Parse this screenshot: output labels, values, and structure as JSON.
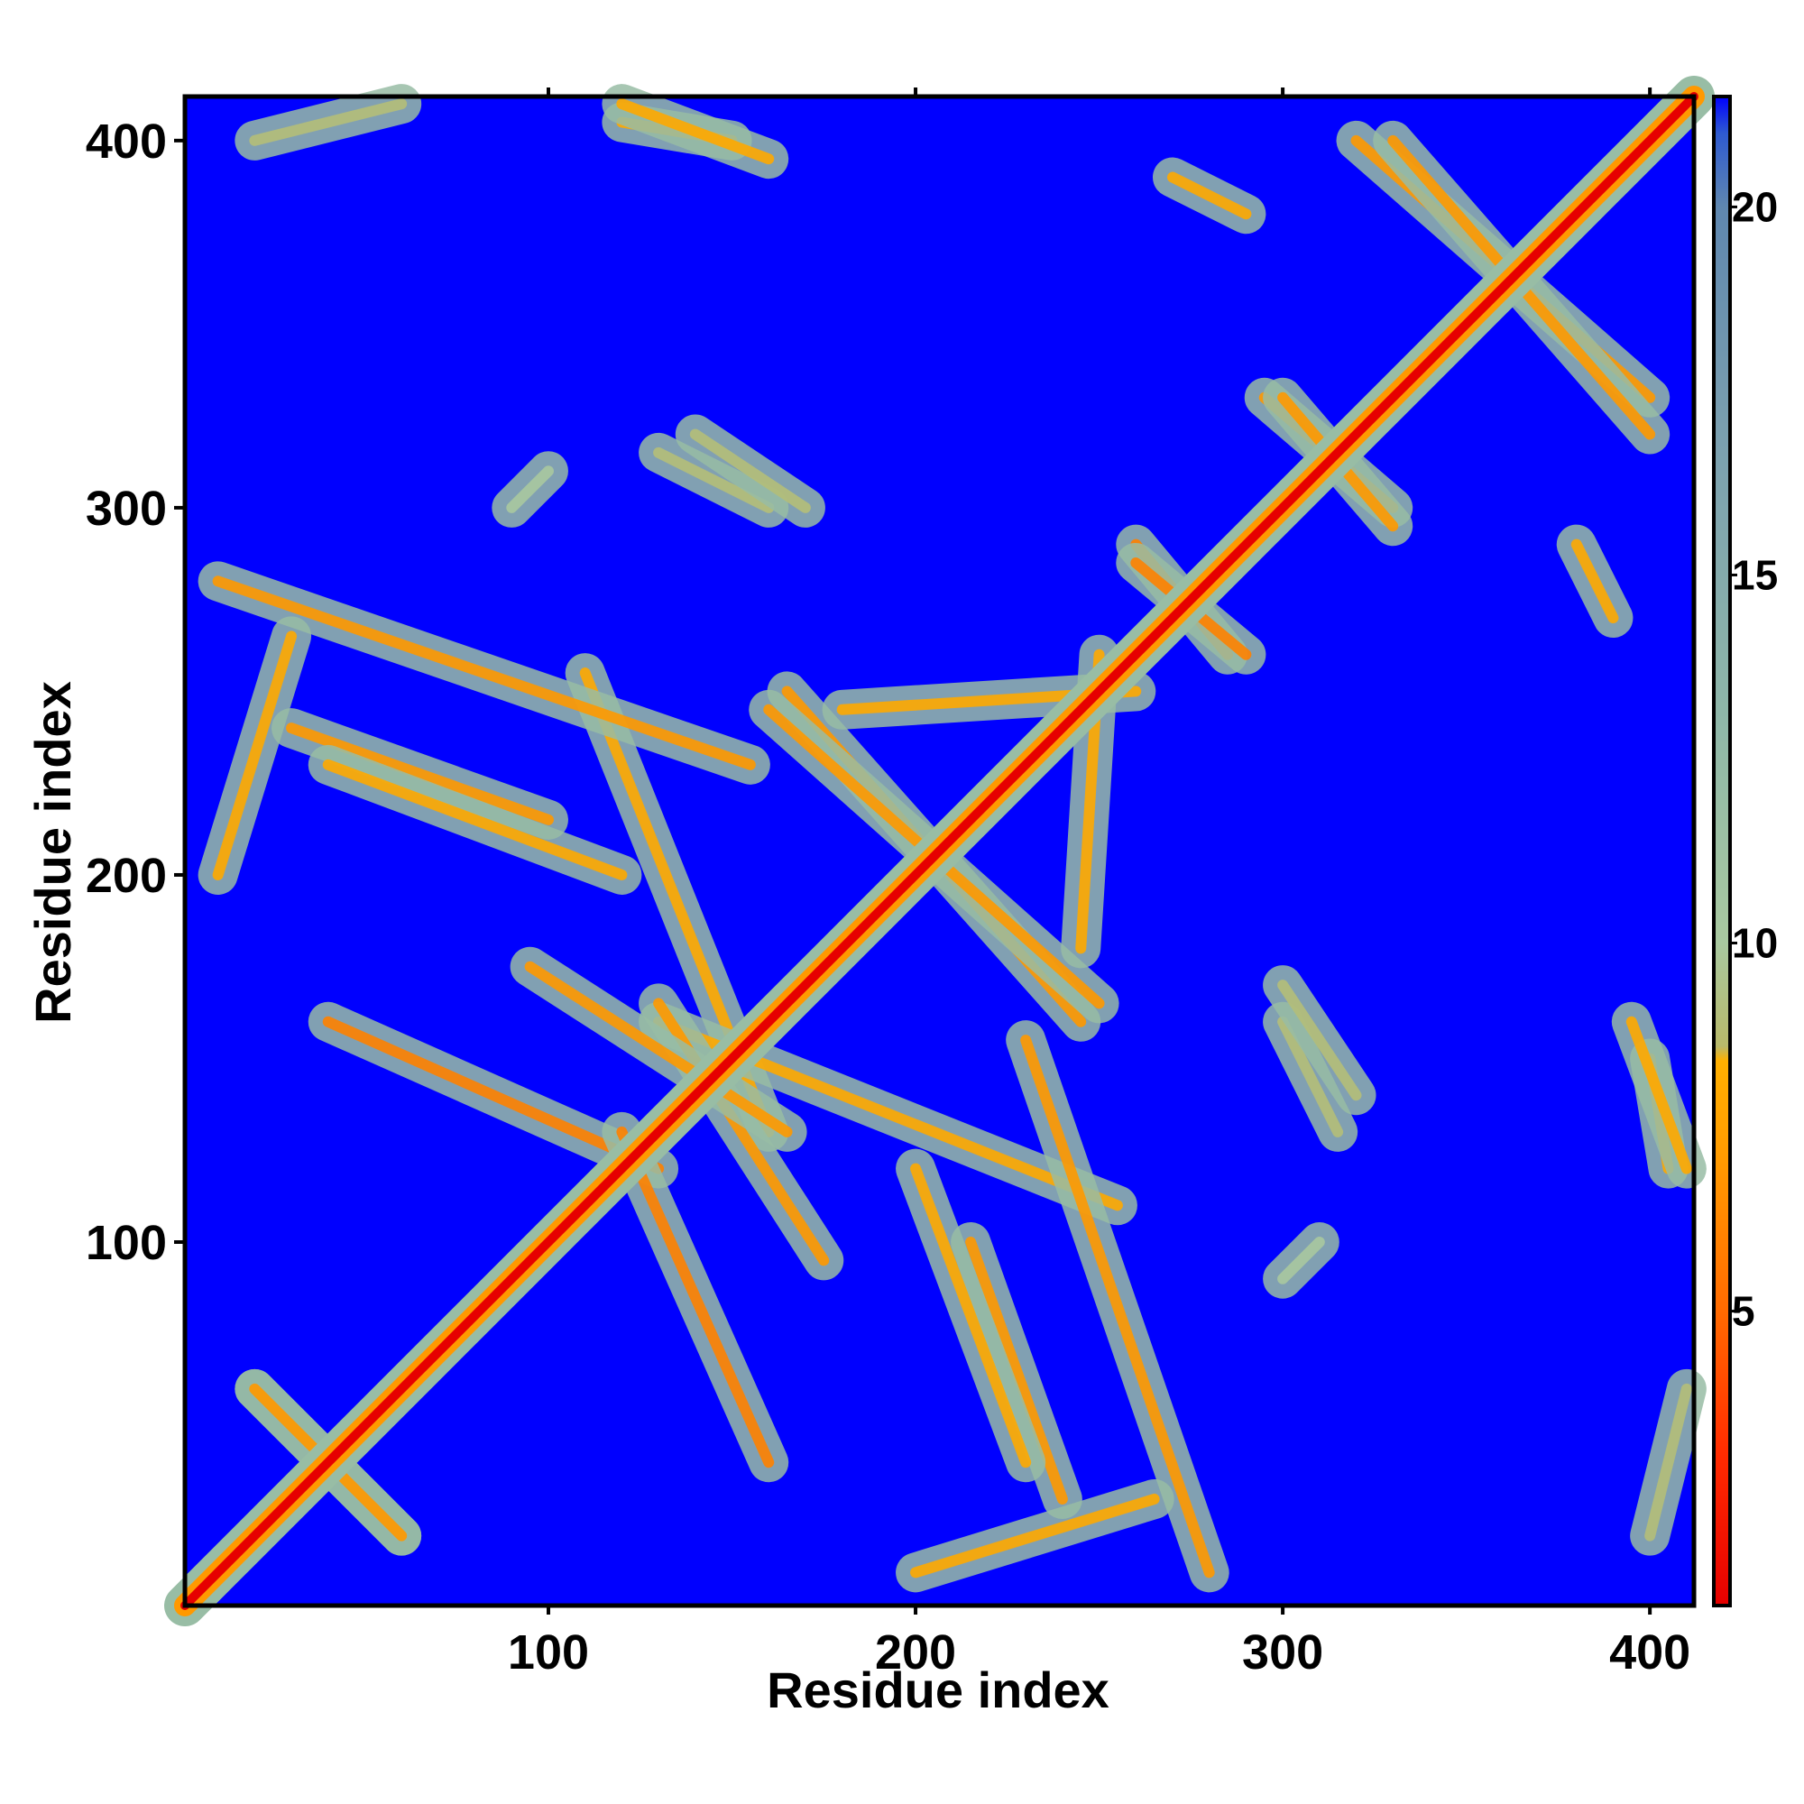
{
  "chart_data": {
    "type": "heatmap",
    "title": "",
    "xlabel": "Residue index",
    "ylabel": "Residue index",
    "xlim": [
      1,
      412
    ],
    "ylim": [
      1,
      412
    ],
    "x_ticks": [
      {
        "value": 100,
        "label": "100"
      },
      {
        "value": 200,
        "label": "200"
      },
      {
        "value": 300,
        "label": "300"
      },
      {
        "value": 400,
        "label": "400"
      }
    ],
    "y_ticks": [
      {
        "value": 100,
        "label": "100"
      },
      {
        "value": 200,
        "label": "200"
      },
      {
        "value": 300,
        "label": "300"
      },
      {
        "value": 400,
        "label": "400"
      }
    ],
    "colorbar": {
      "range": [
        1,
        21.5
      ],
      "ticks": [
        {
          "value": 5,
          "label": "5"
        },
        {
          "value": 10,
          "label": "10"
        },
        {
          "value": 15,
          "label": "15"
        },
        {
          "value": 20,
          "label": "20"
        }
      ],
      "stops": [
        {
          "value": 1,
          "color": "#e60000"
        },
        {
          "value": 3,
          "color": "#ff2a00"
        },
        {
          "value": 5,
          "color": "#ff6a00"
        },
        {
          "value": 7,
          "color": "#ff9900"
        },
        {
          "value": 8.4,
          "color": "#ffb000"
        },
        {
          "value": 8.6,
          "color": "#b8b96a"
        },
        {
          "value": 10,
          "color": "#a9c9a0"
        },
        {
          "value": 13,
          "color": "#8fb7a8"
        },
        {
          "value": 17,
          "color": "#7a9fb0"
        },
        {
          "value": 20,
          "color": "#5f87b0"
        },
        {
          "value": 21,
          "color": "#2e5ad0"
        },
        {
          "value": 21.5,
          "color": "#0000ff"
        }
      ]
    },
    "background_value": 21.5,
    "features": {
      "diagonal": [
        [
          1,
          1
        ],
        [
          412,
          412
        ]
      ],
      "contact_arcs": [
        {
          "from": [
            20,
            60
          ],
          "to": [
            60,
            20
          ],
          "value": 7
        },
        {
          "from": [
            40,
            160
          ],
          "to": [
            130,
            120
          ],
          "value": 6
        },
        {
          "from": [
            10,
            200
          ],
          "to": [
            30,
            265
          ],
          "value": 8
        },
        {
          "from": [
            30,
            240
          ],
          "to": [
            100,
            215
          ],
          "value": 7
        },
        {
          "from": [
            110,
            255
          ],
          "to": [
            160,
            130
          ],
          "value": 8
        },
        {
          "from": [
            130,
            165
          ],
          "to": [
            175,
            95
          ],
          "value": 7
        },
        {
          "from": [
            165,
            250
          ],
          "to": [
            245,
            160
          ],
          "value": 7
        },
        {
          "from": [
            180,
            245
          ],
          "to": [
            260,
            250
          ],
          "value": 8
        },
        {
          "from": [
            200,
            120
          ],
          "to": [
            230,
            40
          ],
          "value": 8
        },
        {
          "from": [
            230,
            155
          ],
          "to": [
            280,
            10
          ],
          "value": 7
        },
        {
          "from": [
            260,
            290
          ],
          "to": [
            285,
            260
          ],
          "value": 6
        },
        {
          "from": [
            295,
            330
          ],
          "to": [
            330,
            300
          ],
          "value": 7
        },
        {
          "from": [
            320,
            400
          ],
          "to": [
            400,
            330
          ],
          "value": 7
        },
        {
          "from": [
            300,
            160
          ],
          "to": [
            315,
            130
          ],
          "value": 9
        },
        {
          "from": [
            270,
            390
          ],
          "to": [
            290,
            380
          ],
          "value": 8
        },
        {
          "from": [
            140,
            320
          ],
          "to": [
            170,
            300
          ],
          "value": 9
        },
        {
          "from": [
            120,
            405
          ],
          "to": [
            150,
            400
          ],
          "value": 8
        },
        {
          "from": [
            395,
            160
          ],
          "to": [
            410,
            120
          ],
          "value": 8
        },
        {
          "from": [
            300,
            90
          ],
          "to": [
            310,
            100
          ],
          "value": 10
        },
        {
          "from": [
            400,
            20
          ],
          "to": [
            410,
            60
          ],
          "value": 9
        }
      ]
    }
  }
}
